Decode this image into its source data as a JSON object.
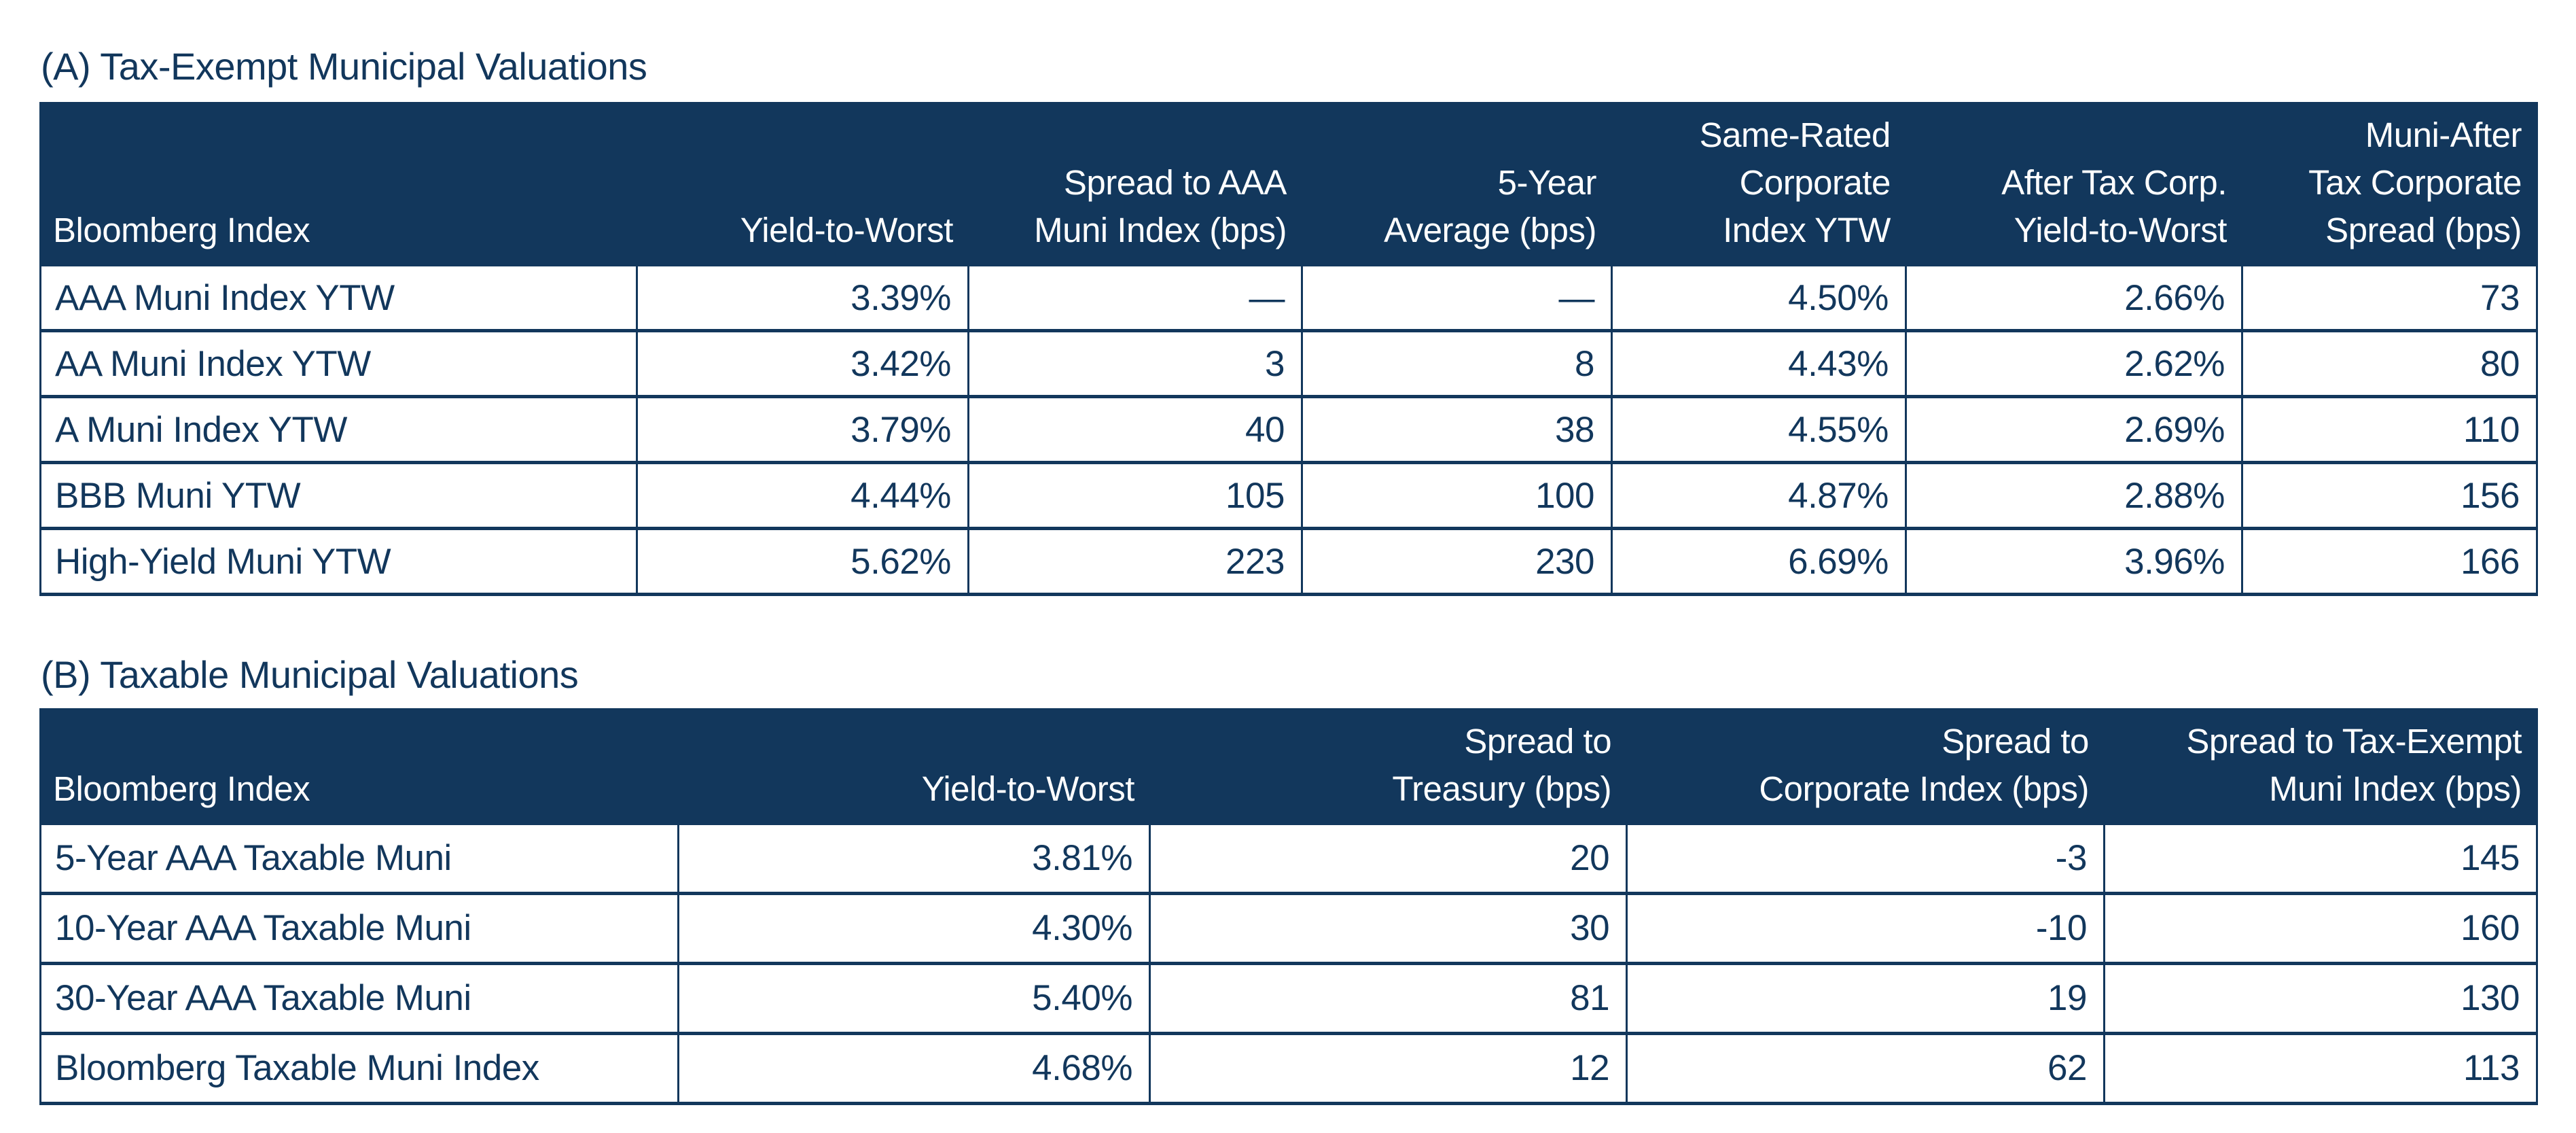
{
  "theme": {
    "navy": "#12375C",
    "background": "#FFFFFF",
    "header_text": "#FFFFFF"
  },
  "section_a": {
    "title": "(A) Tax-Exempt Municipal Valuations",
    "columns": [
      "Bloomberg Index",
      "Yield-to-Worst",
      "Spread to AAA\nMuni Index (bps)",
      "5-Year\nAverage (bps)",
      "Same-Rated\nCorporate\nIndex YTW",
      "After Tax Corp.\nYield-to-Worst",
      "Muni-After\nTax Corporate\nSpread (bps)"
    ],
    "rows": [
      [
        "AAA Muni Index YTW",
        "3.39%",
        "—",
        "—",
        "4.50%",
        "2.66%",
        "73"
      ],
      [
        "AA Muni Index YTW",
        "3.42%",
        "3",
        "8",
        "4.43%",
        "2.62%",
        "80"
      ],
      [
        "A Muni Index YTW",
        "3.79%",
        "40",
        "38",
        "4.55%",
        "2.69%",
        "110"
      ],
      [
        "BBB Muni YTW",
        "4.44%",
        "105",
        "100",
        "4.87%",
        "2.88%",
        "156"
      ],
      [
        "High-Yield Muni YTW",
        "5.62%",
        "223",
        "230",
        "6.69%",
        "3.96%",
        "166"
      ]
    ]
  },
  "section_b": {
    "title": "(B) Taxable Municipal Valuations",
    "columns": [
      "Bloomberg Index",
      "Yield-to-Worst",
      "Spread to\nTreasury (bps)",
      "Spread to\nCorporate Index (bps)",
      "Spread to Tax-Exempt\nMuni Index (bps)"
    ],
    "rows": [
      [
        "5-Year AAA Taxable Muni",
        "3.81%",
        "20",
        "-3",
        "145"
      ],
      [
        "10-Year AAA Taxable Muni",
        "4.30%",
        "30",
        "-10",
        "160"
      ],
      [
        "30-Year AAA Taxable Muni",
        "5.40%",
        "81",
        "19",
        "130"
      ],
      [
        "Bloomberg Taxable Muni Index",
        "4.68%",
        "12",
        "62",
        "113"
      ]
    ]
  }
}
